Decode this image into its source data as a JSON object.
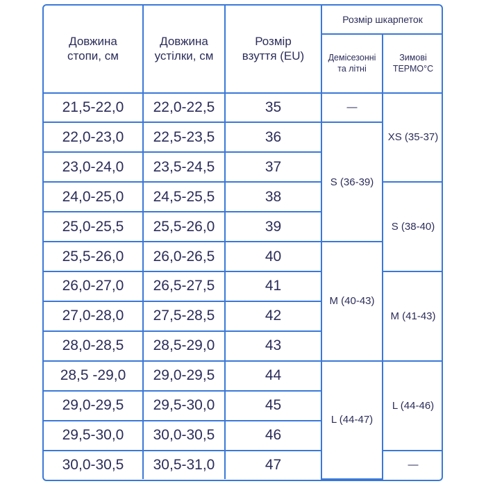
{
  "header": {
    "foot_length": [
      "Довжина",
      "стопи, см"
    ],
    "insole_length": [
      "Довжина",
      "устілки, см"
    ],
    "shoe_size": [
      "Розмір",
      "взуття (EU)"
    ],
    "sock_size": "Розмір шкарпеток",
    "demi": [
      "Демісезонні",
      "та літні"
    ],
    "winter": [
      "Зимові",
      "ТЕРМО°C"
    ]
  },
  "rows": [
    {
      "foot": "21,5-22,0",
      "insole": "22,0-22,5",
      "eu": "35"
    },
    {
      "foot": "22,0-23,0",
      "insole": "22,5-23,5",
      "eu": "36"
    },
    {
      "foot": "23,0-24,0",
      "insole": "23,5-24,5",
      "eu": "37"
    },
    {
      "foot": "24,0-25,0",
      "insole": "24,5-25,5",
      "eu": "38"
    },
    {
      "foot": "25,0-25,5",
      "insole": "25,5-26,0",
      "eu": "39"
    },
    {
      "foot": "25,5-26,0",
      "insole": "26,0-26,5",
      "eu": "40"
    },
    {
      "foot": "26,0-27,0",
      "insole": "26,5-27,5",
      "eu": "41"
    },
    {
      "foot": "27,0-28,0",
      "insole": "27,5-28,5",
      "eu": "42"
    },
    {
      "foot": "28,0-28,5",
      "insole": "28,5-29,0",
      "eu": "43"
    },
    {
      "foot": "28,5 -29,0",
      "insole": "29,0-29,5",
      "eu": "44"
    },
    {
      "foot": "29,0-29,5",
      "insole": "29,5-30,0",
      "eu": "45"
    },
    {
      "foot": "29,5-30,0",
      "insole": "30,0-30,5",
      "eu": "46"
    },
    {
      "foot": "30,0-30,5",
      "insole": "30,5-31,0",
      "eu": "47"
    }
  ],
  "demi_groups": [
    "—",
    "S (36-39)",
    "M (40-43)",
    "L (44-47)"
  ],
  "winter_groups": [
    "XS (35-37)",
    "S (38-40)",
    "M (41-43)",
    "L (44-46)",
    "—"
  ],
  "colors": {
    "border": "#3a78d8",
    "text": "#2b2d5a"
  }
}
